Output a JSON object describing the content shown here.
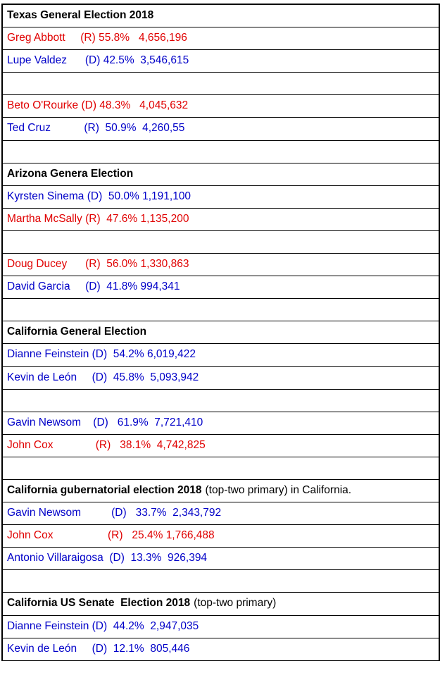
{
  "table": {
    "rows": [
      {
        "title": "Texas General Election 2018"
      },
      {
        "text": "Greg Abbott     (R) 55.8%   4,656,196",
        "color": "#e00000"
      },
      {
        "text": "Lupe Valdez      (D) 42.5%  3,546,615",
        "color": "#0000c8"
      },
      null,
      {
        "text": "Beto O'Rourke (D) 48.3%   4,045,632",
        "color": "#e00000"
      },
      {
        "text": "Ted Cruz           (R)  50.9%  4,260,55",
        "color": "#0000c8"
      },
      null,
      {
        "title": "Arizona Genera Election"
      },
      {
        "text": "Kyrsten Sinema (D)  50.0% 1,191,100",
        "color": "#0000c8"
      },
      {
        "text": "Martha McSally (R)  47.6% 1,135,200",
        "color": "#e00000"
      },
      null,
      {
        "text": "Doug Ducey      (R)  56.0% 1,330,863",
        "color": "#e00000"
      },
      {
        "text": "David Garcia     (D)  41.8% 994,341",
        "color": "#0000c8"
      },
      null,
      {
        "title": "California General Election"
      },
      {
        "text": "Dianne Feinstein (D)  54.2% 6,019,422",
        "color": "#0000c8"
      },
      {
        "text": "Kevin de León     (D)  45.8%  5,093,942",
        "color": "#0000c8"
      },
      null,
      {
        "text": "Gavin Newsom    (D)   61.9%  7,721,410",
        "color": "#0000c8"
      },
      {
        "text": "John Cox              (R)   38.1%  4,742,825",
        "color": "#e00000"
      },
      null,
      {
        "title": "California gubernatorial election 2018",
        "note": "(top-two primary) in California."
      },
      {
        "text": "Gavin Newsom          (D)   33.7%  2,343,792",
        "color": "#0000c8"
      },
      {
        "text": "John Cox                  (R)   25.4% 1,766,488",
        "color": "#e00000"
      },
      {
        "text": "Antonio Villaraigosa  (D)  13.3%  926,394",
        "color": "#0000c8"
      },
      null,
      {
        "title": "California US Senate  Election 2018",
        "note": "(top-two primary)"
      },
      {
        "text": "Dianne Feinstein (D)  44.2%  2,947,035",
        "color": "#0000c8"
      },
      {
        "text": "Kevin de León     (D)  12.1%  805,446",
        "color": "#0000c8"
      }
    ]
  }
}
